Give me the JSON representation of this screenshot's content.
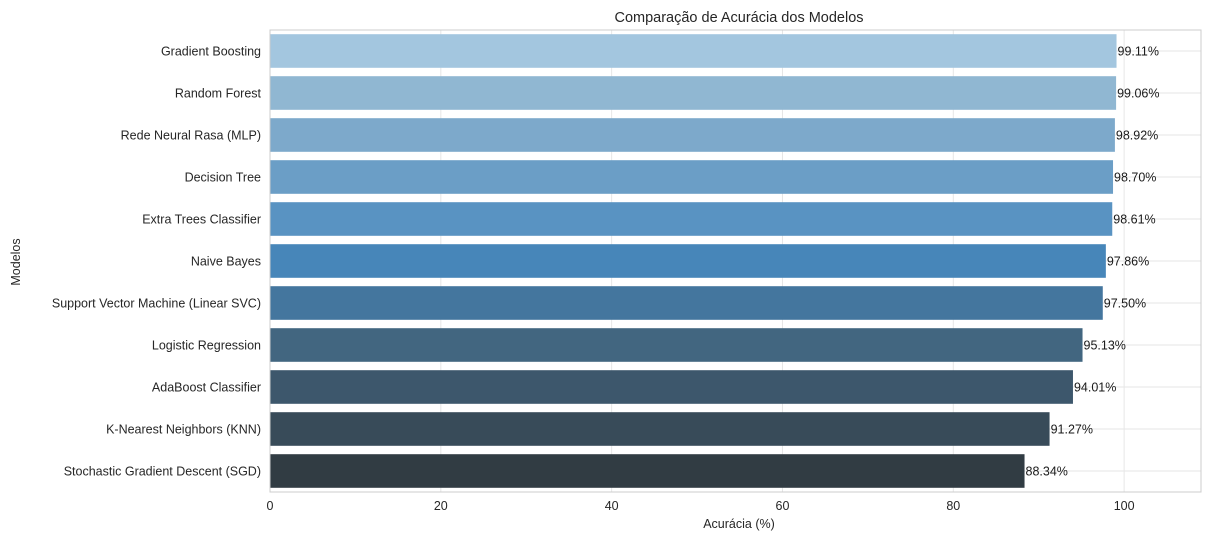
{
  "chart_data": {
    "type": "bar",
    "orientation": "horizontal",
    "title": "Comparação de Acurácia dos Modelos",
    "xlabel": "Acurácia (%)",
    "ylabel": "Modelos",
    "xlim": [
      0,
      109
    ],
    "xticks": [
      0,
      20,
      40,
      60,
      80,
      100
    ],
    "grid": true,
    "categories": [
      "Gradient Boosting",
      "Random Forest",
      "Rede Neural Rasa (MLP)",
      "Decision Tree",
      "Extra Trees Classifier",
      "Naive Bayes",
      "Support Vector Machine (Linear SVC)",
      "Logistic Regression",
      "AdaBoost Classifier",
      "K-Nearest Neighbors (KNN)",
      "Stochastic Gradient Descent (SGD)"
    ],
    "values": [
      99.11,
      99.06,
      98.92,
      98.7,
      98.61,
      97.86,
      97.5,
      95.13,
      94.01,
      91.27,
      88.34
    ],
    "data_labels": [
      "99.11%",
      "99.06%",
      "98.92%",
      "98.70%",
      "98.61%",
      "97.86%",
      "97.50%",
      "95.13%",
      "94.01%",
      "91.27%",
      "88.34%"
    ],
    "colors": [
      "#a3c6df",
      "#90b7d2",
      "#7da9cb",
      "#6b9ec6",
      "#5993c2",
      "#4786b9",
      "#44769e",
      "#426680",
      "#3d576c",
      "#384b59",
      "#313c43"
    ]
  }
}
